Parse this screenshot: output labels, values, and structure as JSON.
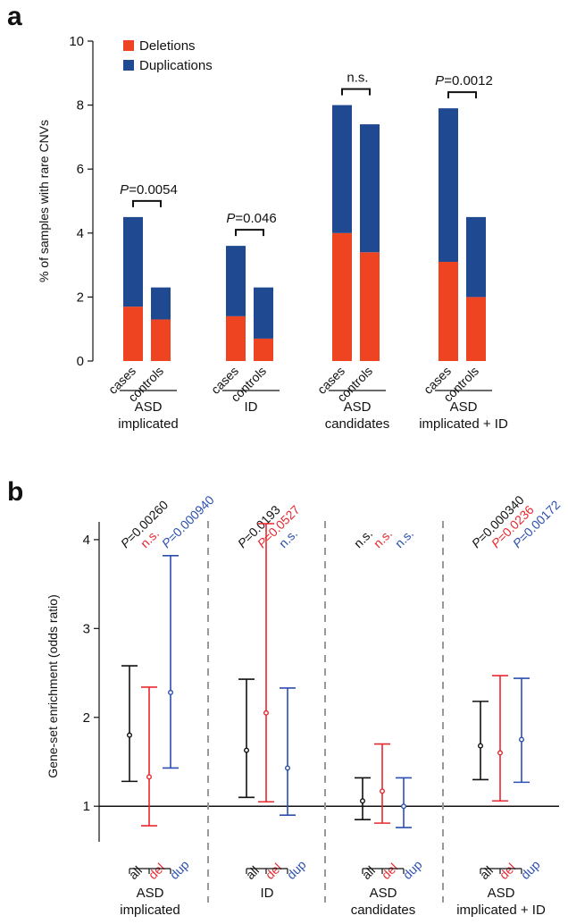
{
  "chart_data": [
    {
      "panel": "a",
      "type": "bar",
      "stacked": true,
      "ylabel": "% of samples with rare CNVs",
      "ylim": [
        0,
        10
      ],
      "yticks": [
        0,
        2,
        4,
        6,
        8,
        10
      ],
      "legend": {
        "placement": "top-left",
        "entries": [
          "Deletions",
          "Duplications"
        ]
      },
      "colors": {
        "Deletions": "#ee4422",
        "Duplications": "#1f4a92"
      },
      "categories": [
        "cases",
        "controls"
      ],
      "groups": [
        {
          "label": [
            "ASD",
            "implicated"
          ],
          "deletions": [
            1.7,
            1.3
          ],
          "duplications": [
            2.8,
            1.0
          ],
          "annotation": "P=0.0054"
        },
        {
          "label": [
            "ID"
          ],
          "deletions": [
            1.4,
            0.7
          ],
          "duplications": [
            2.2,
            1.6
          ],
          "annotation": "P=0.046"
        },
        {
          "label": [
            "ASD",
            "candidates"
          ],
          "deletions": [
            4.0,
            3.4
          ],
          "duplications": [
            4.0,
            4.0
          ],
          "annotation": "n.s."
        },
        {
          "label": [
            "ASD",
            "implicated + ID"
          ],
          "deletions": [
            3.1,
            2.0
          ],
          "duplications": [
            4.8,
            2.5
          ],
          "annotation": "P=0.0012"
        }
      ]
    },
    {
      "panel": "b",
      "type": "scatter",
      "error_bars": true,
      "ylabel": "Gene-set enrichment (odds ratio)",
      "ylim": [
        0.6,
        4.2
      ],
      "yticks": [
        1,
        2,
        3,
        4
      ],
      "reference_line": 1,
      "categories": [
        "all",
        "del",
        "dup"
      ],
      "colors": {
        "all": "#111111",
        "del": "#e8282f",
        "dup": "#2b4fb0"
      },
      "groups": [
        {
          "label": [
            "ASD",
            "implicated"
          ],
          "points": [
            {
              "cat": "all",
              "value": 1.8,
              "low": 1.28,
              "high": 2.58,
              "pval": "P=0.00260"
            },
            {
              "cat": "del",
              "value": 1.33,
              "low": 0.78,
              "high": 2.34,
              "pval": "n.s."
            },
            {
              "cat": "dup",
              "value": 2.28,
              "low": 1.43,
              "high": 3.82,
              "pval": "P=0.000940"
            }
          ]
        },
        {
          "label": [
            "ID"
          ],
          "points": [
            {
              "cat": "all",
              "value": 1.63,
              "low": 1.1,
              "high": 2.43,
              "pval": "P=0.0193"
            },
            {
              "cat": "del",
              "value": 2.05,
              "low": 1.05,
              "high": 4.18,
              "pval": "P=0.0527"
            },
            {
              "cat": "dup",
              "value": 1.43,
              "low": 0.9,
              "high": 2.33,
              "pval": "n.s."
            }
          ]
        },
        {
          "label": [
            "ASD",
            "candidates"
          ],
          "points": [
            {
              "cat": "all",
              "value": 1.06,
              "low": 0.85,
              "high": 1.32,
              "pval": "n.s."
            },
            {
              "cat": "del",
              "value": 1.17,
              "low": 0.81,
              "high": 1.7,
              "pval": "n.s."
            },
            {
              "cat": "dup",
              "value": 1.0,
              "low": 0.76,
              "high": 1.32,
              "pval": "n.s."
            }
          ]
        },
        {
          "label": [
            "ASD",
            "implicated + ID"
          ],
          "points": [
            {
              "cat": "all",
              "value": 1.68,
              "low": 1.3,
              "high": 2.18,
              "pval": "P=0.000340"
            },
            {
              "cat": "del",
              "value": 1.6,
              "low": 1.06,
              "high": 2.47,
              "pval": "P=0.0236"
            },
            {
              "cat": "dup",
              "value": 1.75,
              "low": 1.27,
              "high": 2.44,
              "pval": "P=0.00172"
            }
          ]
        }
      ]
    }
  ]
}
